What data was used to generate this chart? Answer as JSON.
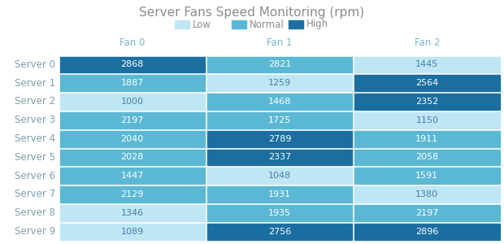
{
  "title": "Server Fans Speed Monitoring (rpm)",
  "col_headers": [
    "Fan 0",
    "Fan 1",
    "Fan 2"
  ],
  "row_headers": [
    "Server 0",
    "Server 1",
    "Server 2",
    "Server 3",
    "Server 4",
    "Server 5",
    "Server 6",
    "Server 7",
    "Server 8",
    "Server 9"
  ],
  "values": [
    [
      2868,
      2821,
      1445
    ],
    [
      1887,
      1259,
      2564
    ],
    [
      1000,
      1468,
      2352
    ],
    [
      2197,
      1725,
      1150
    ],
    [
      2040,
      2789,
      1911
    ],
    [
      2028,
      2337,
      2058
    ],
    [
      1447,
      1048,
      1591
    ],
    [
      2129,
      1931,
      1380
    ],
    [
      1346,
      1935,
      2197
    ],
    [
      1089,
      2756,
      2896
    ]
  ],
  "colors": [
    [
      "high",
      "normal",
      "low"
    ],
    [
      "normal",
      "low",
      "high"
    ],
    [
      "low",
      "normal",
      "high"
    ],
    [
      "normal",
      "normal",
      "low"
    ],
    [
      "normal",
      "high",
      "normal"
    ],
    [
      "normal",
      "high",
      "normal"
    ],
    [
      "normal",
      "low",
      "normal"
    ],
    [
      "normal",
      "normal",
      "low"
    ],
    [
      "low",
      "normal",
      "normal"
    ],
    [
      "low",
      "high",
      "high"
    ]
  ],
  "color_map": {
    "low": "#BEE6F5",
    "normal": "#5BB8D4",
    "high": "#1B6FA0"
  },
  "text_color_map": {
    "low": "#4a7fa5",
    "normal": "#ffffff",
    "high": "#ffffff"
  },
  "title_color": "#8c8c8c",
  "header_color": "#7cb4cc",
  "row_label_color": "#7c9faa",
  "legend_labels": [
    "Low",
    "Normal",
    "High"
  ],
  "legend_colors": [
    "#BEE6F5",
    "#5BB8D4",
    "#1B6FA0"
  ],
  "background_color": "#ffffff",
  "cell_text_fontsize": 8,
  "header_fontsize": 8.5,
  "title_fontsize": 11,
  "row_label_fontsize": 8.5,
  "legend_fontsize": 8.5
}
